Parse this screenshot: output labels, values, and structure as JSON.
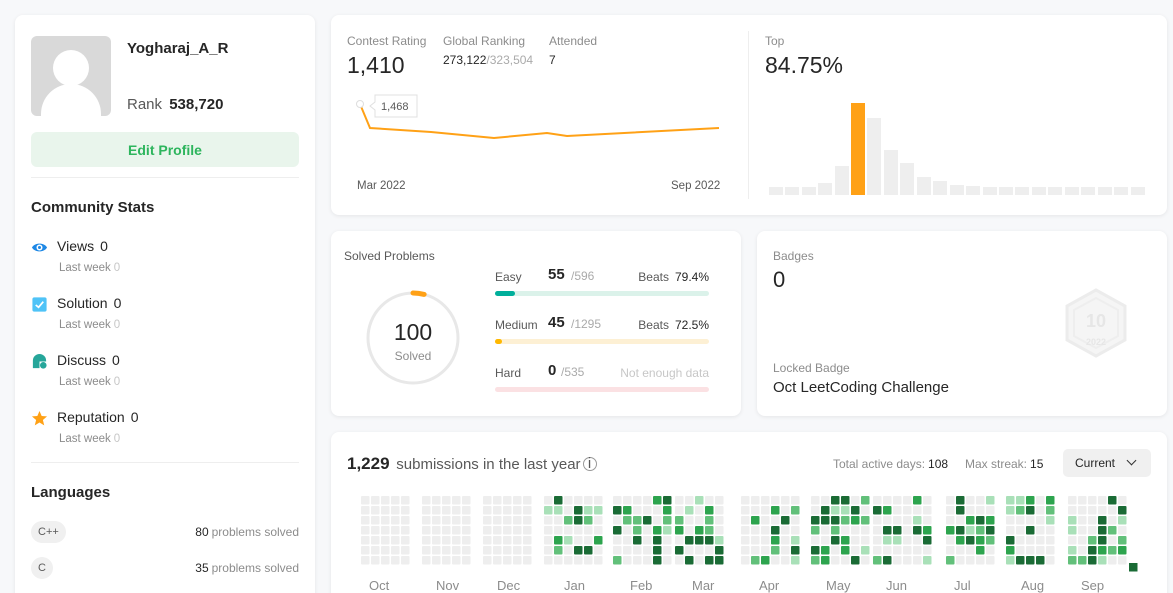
{
  "profile": {
    "username": "Yogharaj_A_R",
    "rank_label": "Rank",
    "rank_value": "538,720",
    "edit_label": "Edit Profile"
  },
  "community": {
    "title": "Community Stats",
    "items": [
      {
        "label": "Views",
        "value": "0",
        "sub_label": "Last week",
        "sub_value": "0"
      },
      {
        "label": "Solution",
        "value": "0",
        "sub_label": "Last week",
        "sub_value": "0"
      },
      {
        "label": "Discuss",
        "value": "0",
        "sub_label": "Last week",
        "sub_value": "0"
      },
      {
        "label": "Reputation",
        "value": "0",
        "sub_label": "Last week",
        "sub_value": "0"
      }
    ]
  },
  "languages": {
    "title": "Languages",
    "items": [
      {
        "name": "C++",
        "count": "80",
        "suffix": "problems solved"
      },
      {
        "name": "C",
        "count": "35",
        "suffix": "problems solved"
      }
    ]
  },
  "contest": {
    "rating_label": "Contest Rating",
    "rating_value": "1,410",
    "global_label": "Global Ranking",
    "global_value": "273,122",
    "global_total": "/323,504",
    "attended_label": "Attended",
    "attended_value": "7",
    "tooltip": "1,468",
    "x_start": "Mar 2022",
    "x_end": "Sep 2022",
    "top_label": "Top",
    "top_value": "84.75%"
  },
  "solved": {
    "title": "Solved Problems",
    "total": "100",
    "total_label": "Solved",
    "progress": 0.04,
    "easy": {
      "name": "Easy",
      "count": "55",
      "total": "/596",
      "beats_label": "Beats",
      "beats": "79.4%",
      "fraction": 0.092,
      "color": "#00af9b",
      "track": "#dbf2ea"
    },
    "medium": {
      "name": "Medium",
      "count": "45",
      "total": "/1295",
      "beats_label": "Beats",
      "beats": "72.5%",
      "fraction": 0.035,
      "color": "#ffb800",
      "track": "#fdf0d4"
    },
    "hard": {
      "name": "Hard",
      "count": "0",
      "total": "/535",
      "note": "Not enough data",
      "fraction": 0,
      "color": "#ff2d55",
      "track": "#fbe1e3"
    }
  },
  "badges": {
    "title": "Badges",
    "count": "0",
    "locked_label": "Locked Badge",
    "locked_name": "Oct LeetCoding Challenge",
    "emblem_num": "10",
    "emblem_year": "2022"
  },
  "submissions": {
    "count": "1,229",
    "text": "submissions in the last year",
    "active_label": "Total active days:",
    "active_value": "108",
    "streak_label": "Max streak:",
    "streak_value": "15",
    "selector": "Current",
    "months": [
      "Oct",
      "Nov",
      "Dec",
      "Jan",
      "Feb",
      "Mar",
      "Apr",
      "May",
      "Jun",
      "Jul",
      "Aug",
      "Sep"
    ]
  }
}
